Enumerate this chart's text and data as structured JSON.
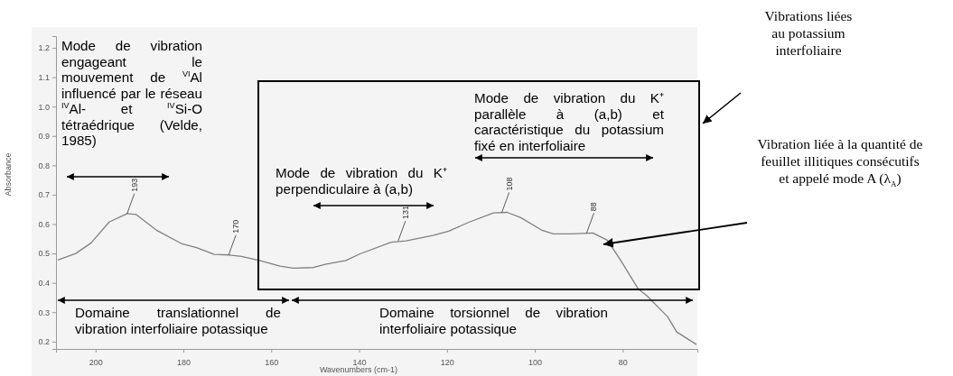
{
  "chart_data": {
    "type": "line",
    "xlabel": "Wavenumbers (cm-1)",
    "ylabel": "Absorbance",
    "x": [
      208.6,
      204.5,
      201,
      196.9,
      192.8,
      190.8,
      186,
      180.5,
      177,
      173,
      169.7,
      166.8,
      162.7,
      158,
      155,
      150.4,
      147.7,
      143,
      139.9,
      132.7,
      129.3,
      123,
      119.6,
      114.9,
      109.4,
      106.3,
      103.2,
      98.5,
      95.8,
      91.7,
      86.8,
      83.5,
      80.6,
      76.5,
      74.5,
      69.8,
      67.7,
      63.2
    ],
    "series": [
      {
        "color": "#808080",
        "values": [
          0.478,
          0.5,
          0.536,
          0.607,
          0.636,
          0.633,
          0.578,
          0.534,
          0.52,
          0.497,
          0.495,
          0.49,
          0.476,
          0.457,
          0.45,
          0.452,
          0.463,
          0.476,
          0.498,
          0.538,
          0.543,
          0.562,
          0.576,
          0.607,
          0.638,
          0.64,
          0.622,
          0.58,
          0.567,
          0.567,
          0.57,
          0.545,
          0.48,
          0.38,
          0.356,
          0.285,
          0.233,
          0.19
        ]
      }
    ],
    "xlim": [
      209,
      63
    ],
    "xticks": [
      200,
      180,
      160,
      140,
      120,
      100,
      80
    ],
    "ylim": [
      0.175,
      1.24
    ],
    "yticks": [
      0.2,
      0.3,
      0.4,
      0.5,
      0.6,
      0.7,
      0.8,
      0.9,
      {
        "value": 1,
        "label": "1.0"
      },
      1.1,
      1.2
    ],
    "marker": "none",
    "line_style": "solid",
    "annotations": [
      "Mode de vibration engageant le mouvement de $^{VI}$Al influencé par le réseau $^{IV}$Al- et $^{IV}$Si-O tétraédrique (Velde, 1985)",
      "Mode de vibration du K⁺ perpendiculaire à (a,b)",
      "Mode de vibration du K⁺ parallèle à (a,b) et caractéristique du potassium fixé en interfoliaire",
      "Domaine translationnel de vibration interfoliaire potassique",
      "Domaine torsionnel de vibration interfoliaire potassique",
      "Vibrations liées au potassium interfoliaire",
      "Vibration liée à la quantité de feuillet illitiques consécutifs et appelé mode A (λ$_{A}$)",
      {
        "text": "193",
        "x": 192.8,
        "y": 0.636
      },
      {
        "text": "170",
        "x": 169.7,
        "y": 0.495
      },
      {
        "text": "131",
        "x": 131.1,
        "y": 0.543
      },
      {
        "text": "108",
        "x": 107.5,
        "y": 0.64
      },
      {
        "text": "88",
        "x": 88.2,
        "y": 0.57
      }
    ]
  }
}
